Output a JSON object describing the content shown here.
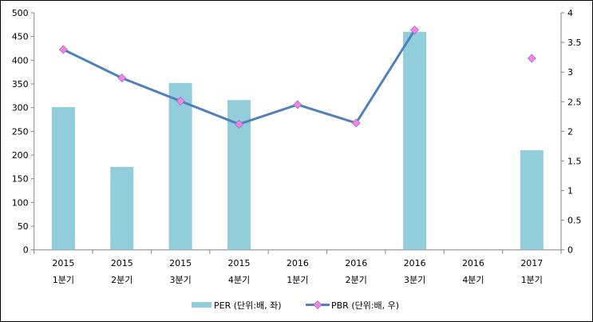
{
  "chart_data": {
    "type": "bar+line",
    "title": "",
    "categories": [
      [
        "2015",
        "1분기"
      ],
      [
        "2015",
        "2분기"
      ],
      [
        "2015",
        "3분기"
      ],
      [
        "2015",
        "4분기"
      ],
      [
        "2016",
        "1분기"
      ],
      [
        "2016",
        "2분기"
      ],
      [
        "2016",
        "3분기"
      ],
      [
        "2016",
        "4분기"
      ],
      [
        "2017",
        "1분기"
      ]
    ],
    "series": [
      {
        "name": "PER (단위:배, 좌)",
        "type": "bar",
        "axis": "left",
        "color": "#92CDDC",
        "values": [
          301,
          175,
          352,
          316,
          null,
          null,
          460,
          null,
          210
        ]
      },
      {
        "name": "PBR (단위:배, 우)",
        "type": "line",
        "axis": "right",
        "color": "#4F81BD",
        "marker_color": "#FF80E0",
        "values": [
          3.38,
          2.9,
          2.51,
          2.12,
          2.45,
          2.14,
          3.71,
          null,
          3.23
        ]
      }
    ],
    "left_axis": {
      "min": 0,
      "max": 500,
      "ticks": [
        "0",
        "50",
        "100",
        "150",
        "200",
        "250",
        "300",
        "350",
        "400",
        "450",
        "500"
      ]
    },
    "right_axis": {
      "min": 0,
      "max": 4,
      "ticks": [
        "0",
        "0.5",
        "1",
        "1.5",
        "2",
        "2.5",
        "3",
        "3.5",
        "4"
      ]
    },
    "grid": false,
    "legend": "bottom"
  }
}
